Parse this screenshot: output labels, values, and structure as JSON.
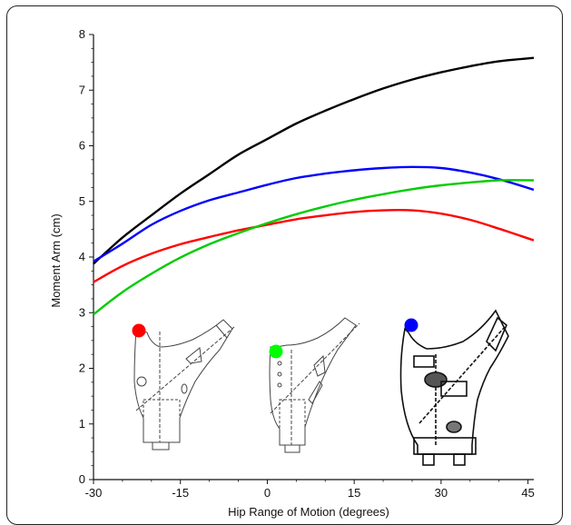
{
  "chart_data": {
    "type": "line",
    "title": "",
    "xlabel": "Hip Range of Motion (degrees)",
    "ylabel": "Moment Arm (cm)",
    "xlim": [
      -30,
      46
    ],
    "ylim": [
      0,
      8
    ],
    "x_ticks": [
      "-30",
      "-15",
      "0",
      "15",
      "30",
      "45"
    ],
    "y_ticks": [
      "0",
      "1",
      "2",
      "3",
      "4",
      "5",
      "6",
      "7",
      "8"
    ],
    "grid": false,
    "legend": "none",
    "x": [
      -30,
      -25,
      -20,
      -15,
      -10,
      -5,
      0,
      5,
      10,
      15,
      20,
      25,
      30,
      35,
      40,
      46
    ],
    "series": [
      {
        "color": "#000000",
        "values": [
          3.88,
          4.35,
          4.75,
          5.14,
          5.49,
          5.84,
          6.12,
          6.4,
          6.63,
          6.84,
          7.03,
          7.19,
          7.32,
          7.43,
          7.52,
          7.58
        ]
      },
      {
        "color": "#0000ff",
        "values": [
          3.92,
          4.24,
          4.58,
          4.83,
          5.02,
          5.16,
          5.3,
          5.42,
          5.5,
          5.56,
          5.6,
          5.62,
          5.6,
          5.52,
          5.4,
          5.21
        ]
      },
      {
        "color": "#ff0000",
        "values": [
          3.55,
          3.84,
          4.06,
          4.23,
          4.36,
          4.48,
          4.58,
          4.68,
          4.75,
          4.81,
          4.84,
          4.84,
          4.78,
          4.67,
          4.51,
          4.3
        ]
      },
      {
        "color": "#00cc00",
        "values": [
          2.97,
          3.37,
          3.7,
          3.99,
          4.23,
          4.43,
          4.61,
          4.77,
          4.91,
          5.03,
          5.13,
          5.22,
          5.29,
          5.34,
          5.38,
          5.38
        ]
      }
    ]
  },
  "markers": [
    {
      "color": "#ff0000"
    },
    {
      "color": "#00ff00"
    },
    {
      "color": "#0000ff"
    }
  ]
}
